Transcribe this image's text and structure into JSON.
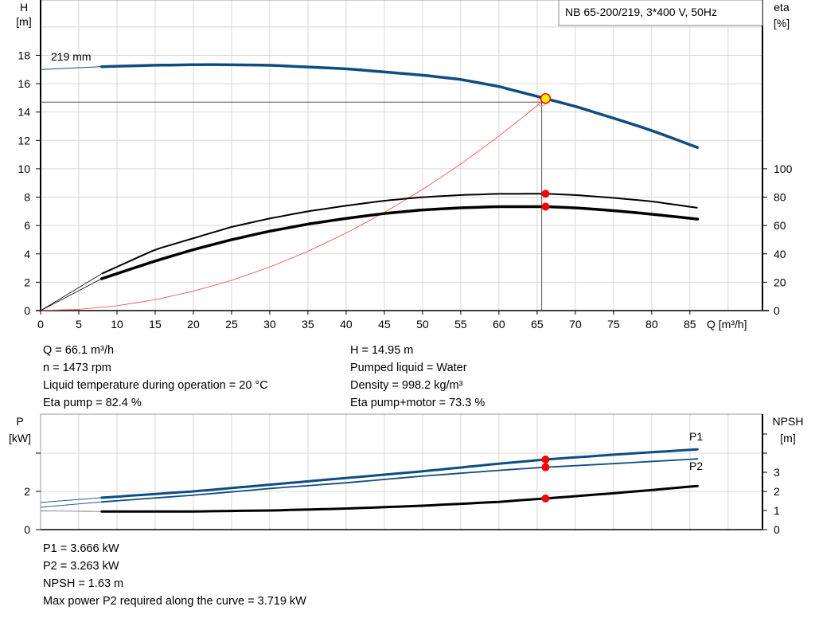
{
  "chart_data": [
    {
      "type": "line",
      "title": "NB 65-200/219, 3*400 V, 50Hz",
      "xlabel": "Q [m³/h]",
      "ylabel": "H\n[m]",
      "ylabel_left_lines": [
        "H",
        "[m]"
      ],
      "ylabel_right_lines": [
        "eta",
        "[%]"
      ],
      "xlim": [
        0,
        94.5
      ],
      "ylim_left": [
        0,
        21.9
      ],
      "ylim_right": [
        0,
        219
      ],
      "x_ticks": [
        0,
        5,
        10,
        15,
        20,
        25,
        30,
        35,
        40,
        45,
        50,
        55,
        60,
        65,
        70,
        75,
        80,
        85
      ],
      "y_ticks_left": [
        0,
        2,
        4,
        6,
        8,
        10,
        12,
        14,
        16,
        18
      ],
      "y_ticks_right": [
        0,
        20,
        40,
        60,
        80,
        100
      ],
      "grid": true,
      "curve_label": "219 mm",
      "series": [
        {
          "key": "H",
          "axis": "left",
          "color": "#0f4c81",
          "points": [
            [
              0,
              17.0
            ],
            [
              8,
              17.2
            ],
            [
              15,
              17.3
            ],
            [
              22,
              17.35
            ],
            [
              30,
              17.3
            ],
            [
              40,
              17.05
            ],
            [
              50,
              16.6
            ],
            [
              55,
              16.3
            ],
            [
              60,
              15.8
            ],
            [
              66.1,
              14.95
            ],
            [
              70,
              14.4
            ],
            [
              76,
              13.4
            ],
            [
              80,
              12.7
            ],
            [
              86,
              11.5
            ]
          ]
        },
        {
          "key": "eta_pump",
          "axis": "right",
          "color": "#000000",
          "points": [
            [
              0,
              0
            ],
            [
              8,
              26
            ],
            [
              15,
              43
            ],
            [
              20,
              51
            ],
            [
              25,
              59
            ],
            [
              30,
              65
            ],
            [
              35,
              70
            ],
            [
              40,
              74
            ],
            [
              45,
              77.5
            ],
            [
              50,
              80
            ],
            [
              55,
              81.5
            ],
            [
              60,
              82.3
            ],
            [
              66.1,
              82.4
            ],
            [
              70,
              81.5
            ],
            [
              75,
              79.5
            ],
            [
              80,
              77
            ],
            [
              86,
              72.5
            ]
          ]
        },
        {
          "key": "eta_pump_motor",
          "axis": "right",
          "color": "#000000",
          "points": [
            [
              0,
              0
            ],
            [
              8,
              22.5
            ],
            [
              15,
              35
            ],
            [
              20,
              43
            ],
            [
              25,
              50
            ],
            [
              30,
              56
            ],
            [
              35,
              61
            ],
            [
              40,
              65
            ],
            [
              45,
              68.5
            ],
            [
              50,
              71
            ],
            [
              55,
              72.5
            ],
            [
              60,
              73.3
            ],
            [
              66.1,
              73.3
            ],
            [
              70,
              72.5
            ],
            [
              75,
              70.5
            ],
            [
              80,
              68
            ],
            [
              86,
              64.5
            ]
          ]
        },
        {
          "key": "system",
          "axis": "left",
          "color": "#ff4040",
          "points": [
            [
              0,
              0
            ],
            [
              5,
              0.09
            ],
            [
              10,
              0.34
            ],
            [
              15,
              0.77
            ],
            [
              20,
              1.37
            ],
            [
              25,
              2.13
            ],
            [
              30,
              3.07
            ],
            [
              35,
              4.18
            ],
            [
              40,
              5.47
            ],
            [
              45,
              6.92
            ],
            [
              50,
              8.54
            ],
            [
              55,
              10.33
            ],
            [
              60,
              12.3
            ],
            [
              65.6,
              14.7
            ]
          ]
        }
      ],
      "operating_point": {
        "Q": 66.1,
        "H": 14.95,
        "eta_pump": 82.4,
        "eta_pump_motor": 73.3
      }
    },
    {
      "type": "line",
      "xlim": [
        0,
        94.5
      ],
      "ylim_left": [
        0,
        6.04
      ],
      "ylim_right": [
        0,
        6.04
      ],
      "ylabel_left_lines": [
        "P",
        "[kW]"
      ],
      "ylabel_right_lines": [
        "NPSH",
        "[m]"
      ],
      "y_ticks_left": [
        0,
        2,
        4
      ],
      "y_tick_labels_left": [
        "0",
        "2",
        ""
      ],
      "y_ticks_right": [
        0,
        1,
        2,
        3,
        4,
        5
      ],
      "y_tick_labels_right": [
        "0",
        "1",
        "2",
        "3",
        "",
        ""
      ],
      "grid": true,
      "series": [
        {
          "key": "P1",
          "name": "P1",
          "color": "#0f4c81",
          "points": [
            [
              0,
              1.42
            ],
            [
              8,
              1.67
            ],
            [
              20,
              2.0
            ],
            [
              30,
              2.35
            ],
            [
              40,
              2.7
            ],
            [
              50,
              3.05
            ],
            [
              60,
              3.45
            ],
            [
              66.1,
              3.666
            ],
            [
              75,
              3.92
            ],
            [
              86,
              4.2
            ]
          ]
        },
        {
          "key": "P2",
          "name": "P2",
          "color": "#0f4c81",
          "points": [
            [
              0,
              1.17
            ],
            [
              8,
              1.45
            ],
            [
              20,
              1.8
            ],
            [
              30,
              2.15
            ],
            [
              40,
              2.45
            ],
            [
              50,
              2.8
            ],
            [
              60,
              3.1
            ],
            [
              66.1,
              3.263
            ],
            [
              75,
              3.45
            ],
            [
              86,
              3.7
            ]
          ]
        },
        {
          "key": "NPSH",
          "color": "#000000",
          "points": [
            [
              0,
              0.98
            ],
            [
              8,
              0.95
            ],
            [
              20,
              0.95
            ],
            [
              30,
              1.0
            ],
            [
              40,
              1.1
            ],
            [
              50,
              1.25
            ],
            [
              60,
              1.45
            ],
            [
              66.1,
              1.63
            ],
            [
              75,
              1.9
            ],
            [
              86,
              2.28
            ]
          ]
        }
      ],
      "operating_point": {
        "Q": 66.1,
        "P1": 3.666,
        "P2": 3.263,
        "NPSH": 1.63
      }
    }
  ],
  "info_top": {
    "left": [
      "Q = 66.1 m³/h",
      "n = 1473 rpm",
      "Liquid temperature during operation = 20 °C",
      "Eta pump = 82.4 %"
    ],
    "right": [
      "H = 14.95 m",
      "Pumped liquid = Water",
      "Density = 998.2 kg/m³",
      "Eta pump+motor = 73.3 %"
    ]
  },
  "info_bottom": [
    "P1 = 3.666 kW",
    "P2 = 3.263 kW",
    "NPSH = 1.63 m",
    "Max power P2 required along the curve = 3.719 kW"
  ],
  "colors": {
    "pump_curve": "#0f4c81",
    "system_curve": "#ff4040",
    "operating_point_fill": "#ffee00",
    "operating_point_stroke": "#ff0000",
    "marker": "#ff0000",
    "grid": "#d8d8d8"
  }
}
